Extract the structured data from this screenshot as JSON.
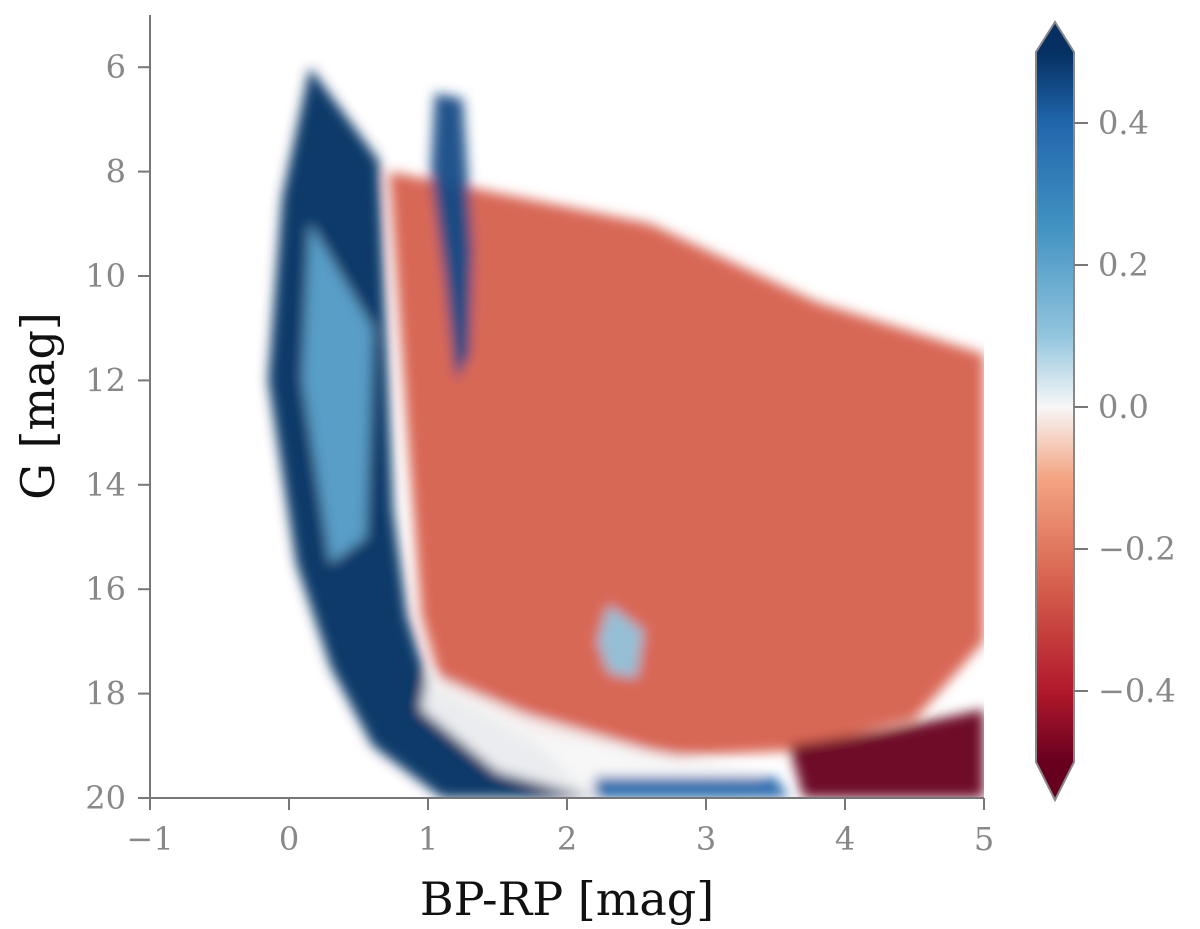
{
  "chart_data": {
    "type": "heatmap",
    "title": "",
    "xlabel": "BP-RP [mag]",
    "ylabel": "G [mag]",
    "xlim": [
      -1,
      5
    ],
    "ylim": [
      20,
      5
    ],
    "y_inverted": true,
    "grid": false,
    "xticks": [
      {
        "value": -1,
        "label": "−1"
      },
      {
        "value": 0,
        "label": "0"
      },
      {
        "value": 1,
        "label": "1"
      },
      {
        "value": 2,
        "label": "2"
      },
      {
        "value": 3,
        "label": "3"
      },
      {
        "value": 4,
        "label": "4"
      },
      {
        "value": 5,
        "label": "5"
      }
    ],
    "yticks": [
      {
        "value": 6,
        "label": "6"
      },
      {
        "value": 8,
        "label": "8"
      },
      {
        "value": 10,
        "label": "10"
      },
      {
        "value": 12,
        "label": "12"
      },
      {
        "value": 14,
        "label": "14"
      },
      {
        "value": 16,
        "label": "16"
      },
      {
        "value": 18,
        "label": "18"
      },
      {
        "value": 20,
        "label": "20"
      }
    ],
    "colorbar": {
      "colormap": "RdBu",
      "range": [
        -0.5,
        0.5
      ],
      "extend": "both",
      "ticks": [
        {
          "value": 0.4,
          "label": "0.4"
        },
        {
          "value": 0.2,
          "label": "0.2"
        },
        {
          "value": 0.0,
          "label": "0.0"
        },
        {
          "value": -0.2,
          "label": "−0.2"
        },
        {
          "value": -0.4,
          "label": "−0.4"
        }
      ],
      "colors": {
        "low": "#67001f",
        "mid": "#f7f7f7",
        "high": "#053061"
      }
    },
    "regions": [
      {
        "feature": "blue main-sequence band",
        "value": 0.5,
        "points": [
          [
            0.15,
            6.0
          ],
          [
            0.65,
            7.8
          ],
          [
            0.75,
            14.5
          ],
          [
            0.85,
            16.5
          ],
          [
            1.0,
            17.8
          ],
          [
            1.8,
            19.0
          ],
          [
            2.2,
            20.0
          ],
          [
            1.1,
            20.0
          ],
          [
            0.6,
            19.0
          ],
          [
            0.3,
            17.5
          ],
          [
            0.05,
            15.5
          ],
          [
            -0.15,
            12.0
          ],
          [
            -0.05,
            8.5
          ]
        ]
      },
      {
        "feature": "light blue outer edge",
        "value": 0.2,
        "points": [
          [
            0.15,
            9.0
          ],
          [
            0.6,
            11.0
          ],
          [
            0.55,
            15.0
          ],
          [
            0.3,
            15.5
          ],
          [
            0.1,
            12.0
          ]
        ]
      },
      {
        "feature": "red giant region",
        "value": -0.25,
        "points": [
          [
            0.72,
            8.0
          ],
          [
            1.3,
            8.3
          ],
          [
            2.6,
            9.0
          ],
          [
            3.8,
            10.5
          ],
          [
            5.0,
            11.5
          ],
          [
            5.0,
            17.0
          ],
          [
            4.5,
            18.5
          ],
          [
            3.6,
            19.1
          ],
          [
            2.8,
            19.2
          ],
          [
            1.8,
            18.8
          ],
          [
            1.1,
            17.9
          ],
          [
            0.95,
            16.5
          ],
          [
            0.85,
            13.0
          ]
        ]
      },
      {
        "feature": "red clump (blue)",
        "value": 0.45,
        "points": [
          [
            1.05,
            6.5
          ],
          [
            1.25,
            6.6
          ],
          [
            1.32,
            9.5
          ],
          [
            1.3,
            11.5
          ],
          [
            1.2,
            12.0
          ],
          [
            1.12,
            10.0
          ],
          [
            1.02,
            8.0
          ]
        ]
      },
      {
        "feature": "white lower sequence",
        "value": 0.0,
        "points": [
          [
            1.0,
            17.6
          ],
          [
            1.7,
            18.4
          ],
          [
            2.6,
            19.1
          ],
          [
            3.4,
            19.5
          ],
          [
            3.3,
            20.0
          ],
          [
            2.2,
            20.0
          ],
          [
            1.5,
            19.5
          ],
          [
            0.95,
            18.3
          ]
        ]
      },
      {
        "feature": "light blue patch",
        "value": 0.1,
        "points": [
          [
            2.3,
            16.3
          ],
          [
            2.55,
            16.8
          ],
          [
            2.5,
            17.7
          ],
          [
            2.3,
            17.6
          ],
          [
            2.22,
            17.0
          ]
        ]
      },
      {
        "feature": "dark red corner",
        "value": -0.5,
        "points": [
          [
            3.6,
            19.0
          ],
          [
            4.3,
            18.7
          ],
          [
            5.0,
            18.3
          ],
          [
            5.0,
            20.0
          ],
          [
            3.7,
            20.0
          ]
        ]
      },
      {
        "feature": "blue bottom strip",
        "value": 0.4,
        "points": [
          [
            2.2,
            19.6
          ],
          [
            3.5,
            19.6
          ],
          [
            3.6,
            20.0
          ],
          [
            2.2,
            20.0
          ]
        ]
      }
    ]
  }
}
